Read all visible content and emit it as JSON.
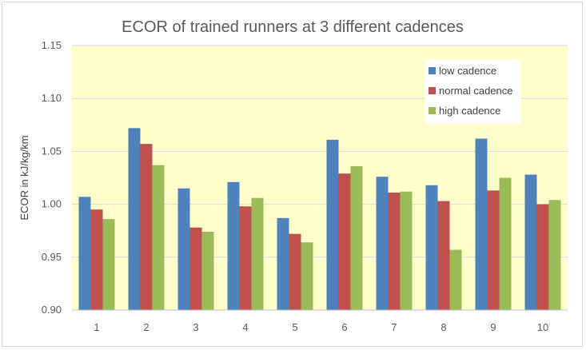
{
  "chart_data": {
    "type": "bar",
    "title": "ECOR of trained runners at 3 different cadences",
    "xlabel": "",
    "ylabel": "ECOR in kJ/kg/km",
    "ylim": [
      0.9,
      1.15
    ],
    "yticks": [
      0.9,
      0.95,
      1.0,
      1.05,
      1.1,
      1.15
    ],
    "ytick_labels": [
      "0.90",
      "0.95",
      "1.00",
      "1.05",
      "1.10",
      "1.15"
    ],
    "categories": [
      "1",
      "2",
      "3",
      "4",
      "5",
      "6",
      "7",
      "8",
      "9",
      "10"
    ],
    "grid": true,
    "legend_position": "top-right",
    "series": [
      {
        "name": "low cadence",
        "color": "#4f81bd",
        "values": [
          1.007,
          1.072,
          1.015,
          1.021,
          0.987,
          1.061,
          1.026,
          1.018,
          1.062,
          1.028
        ]
      },
      {
        "name": "normal cadence",
        "color": "#c0504d",
        "values": [
          0.995,
          1.057,
          0.978,
          0.998,
          0.972,
          1.029,
          1.011,
          1.003,
          1.013,
          1.0
        ]
      },
      {
        "name": "high cadence",
        "color": "#9bbb59",
        "values": [
          0.986,
          1.037,
          0.974,
          1.006,
          0.964,
          1.036,
          1.012,
          0.957,
          1.025,
          1.004
        ]
      }
    ],
    "plot_background": "#ffffcc"
  }
}
